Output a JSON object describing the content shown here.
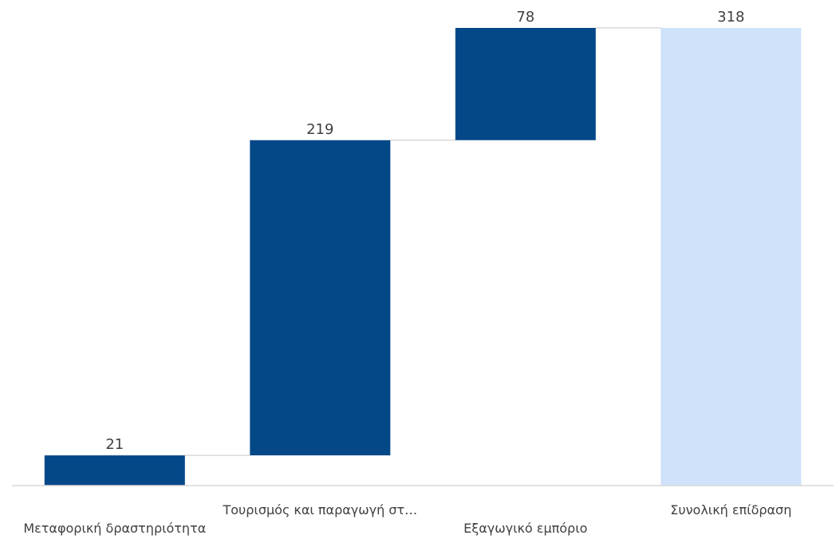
{
  "chart_data": {
    "type": "bar",
    "subtype": "waterfall",
    "title": "",
    "xlabel": "",
    "ylabel": "",
    "categories": [
      "Μεταφορική δραστηριότητα",
      "Τουρισμός και παραγωγή στ…",
      "Εξαγωγικό εμπόριο",
      "Συνολική επίδραση"
    ],
    "values": [
      21,
      219,
      78,
      318
    ],
    "value_labels": [
      "21",
      "219",
      "78",
      "318"
    ],
    "is_total": [
      false,
      false,
      false,
      true
    ],
    "ylim": [
      0,
      318
    ],
    "grid": false,
    "legend": "none",
    "colors": {
      "increase": "#054888",
      "total": "#CFE2FA",
      "connector": "#D9D9D9",
      "axis": "#D9D9D9",
      "label_text": "#404040"
    }
  }
}
